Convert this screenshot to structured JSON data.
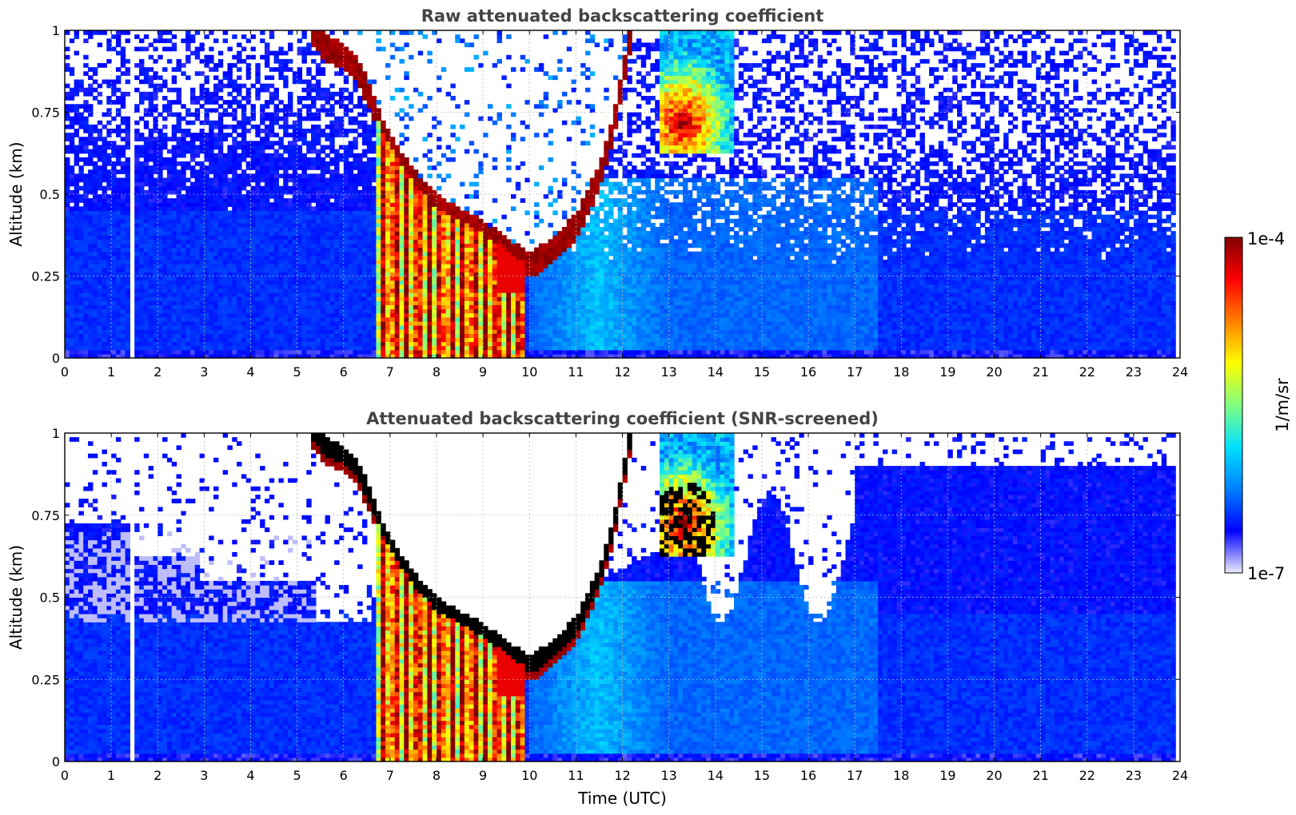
{
  "chart_data": [
    {
      "type": "heatmap",
      "title": "Raw attenuated backscattering coefficient",
      "xlabel": "",
      "ylabel": "Altitude (km)",
      "xlim": [
        0,
        24
      ],
      "ylim": [
        0,
        1
      ],
      "xticks": [
        "0",
        "1",
        "2",
        "3",
        "4",
        "5",
        "6",
        "7",
        "8",
        "9",
        "10",
        "11",
        "12",
        "13",
        "14",
        "15",
        "16",
        "17",
        "18",
        "19",
        "20",
        "21",
        "22",
        "23",
        "24"
      ],
      "yticks": [
        "0",
        "0.25",
        "0.5",
        "0.75",
        "1"
      ],
      "grid": true,
      "screened": false,
      "gap": [
        1.45,
        1.55
      ],
      "cloud": {
        "base_km": [
          [
            5.3,
            1.0
          ],
          [
            5.6,
            0.95
          ],
          [
            6.0,
            0.92
          ],
          [
            6.3,
            0.88
          ],
          [
            6.6,
            0.78
          ],
          [
            6.8,
            0.7
          ],
          [
            7.2,
            0.6
          ],
          [
            7.6,
            0.52
          ],
          [
            8.0,
            0.46
          ],
          [
            8.5,
            0.42
          ],
          [
            9.0,
            0.38
          ],
          [
            9.5,
            0.33
          ],
          [
            10.0,
            0.28
          ],
          [
            10.5,
            0.33
          ],
          [
            11.0,
            0.4
          ],
          [
            11.5,
            0.55
          ],
          [
            11.8,
            0.7
          ],
          [
            12.0,
            0.85
          ],
          [
            12.2,
            1.0
          ]
        ],
        "precip_intervals": [
          [
            6.6,
            9.95
          ]
        ]
      },
      "patch": {
        "x": [
          12.8,
          14.4
        ],
        "y": [
          0.62,
          1.0
        ],
        "center": [
          13.3,
          0.72
        ]
      }
    },
    {
      "type": "heatmap",
      "title": "Attenuated backscattering coefficient (SNR-screened)",
      "xlabel": "Time (UTC)",
      "ylabel": "Altitude (km)",
      "xlim": [
        0,
        24
      ],
      "ylim": [
        0,
        1
      ],
      "xticks": [
        "0",
        "1",
        "2",
        "3",
        "4",
        "5",
        "6",
        "7",
        "8",
        "9",
        "10",
        "11",
        "12",
        "13",
        "14",
        "15",
        "16",
        "17",
        "18",
        "19",
        "20",
        "21",
        "22",
        "23",
        "24"
      ],
      "yticks": [
        "0",
        "0.25",
        "0.5",
        "0.75",
        "1"
      ],
      "grid": true,
      "screened": true,
      "gap": [
        1.45,
        1.55
      ],
      "cloud": {
        "base_km": [
          [
            5.3,
            1.0
          ],
          [
            5.6,
            0.95
          ],
          [
            6.0,
            0.92
          ],
          [
            6.3,
            0.88
          ],
          [
            6.6,
            0.78
          ],
          [
            6.8,
            0.7
          ],
          [
            7.2,
            0.6
          ],
          [
            7.6,
            0.52
          ],
          [
            8.0,
            0.46
          ],
          [
            8.5,
            0.42
          ],
          [
            9.0,
            0.38
          ],
          [
            9.5,
            0.33
          ],
          [
            10.0,
            0.28
          ],
          [
            10.5,
            0.33
          ],
          [
            11.0,
            0.4
          ],
          [
            11.5,
            0.55
          ],
          [
            11.8,
            0.7
          ],
          [
            12.0,
            0.85
          ],
          [
            12.2,
            1.0
          ]
        ],
        "precip_intervals": [
          [
            6.6,
            9.95
          ]
        ]
      },
      "patch": {
        "x": [
          12.8,
          14.4
        ],
        "y": [
          0.62,
          1.0
        ],
        "center": [
          13.3,
          0.72
        ]
      }
    }
  ],
  "colorbar": {
    "label": "1/m/sr",
    "max_label": "1e-4",
    "min_label": "1e-7",
    "colormap": "jet",
    "colors": [
      "#ececfb",
      "#0000ff",
      "#0080ff",
      "#00e0ff",
      "#80ff80",
      "#ffff00",
      "#ff8000",
      "#ff0000",
      "#800000"
    ]
  }
}
